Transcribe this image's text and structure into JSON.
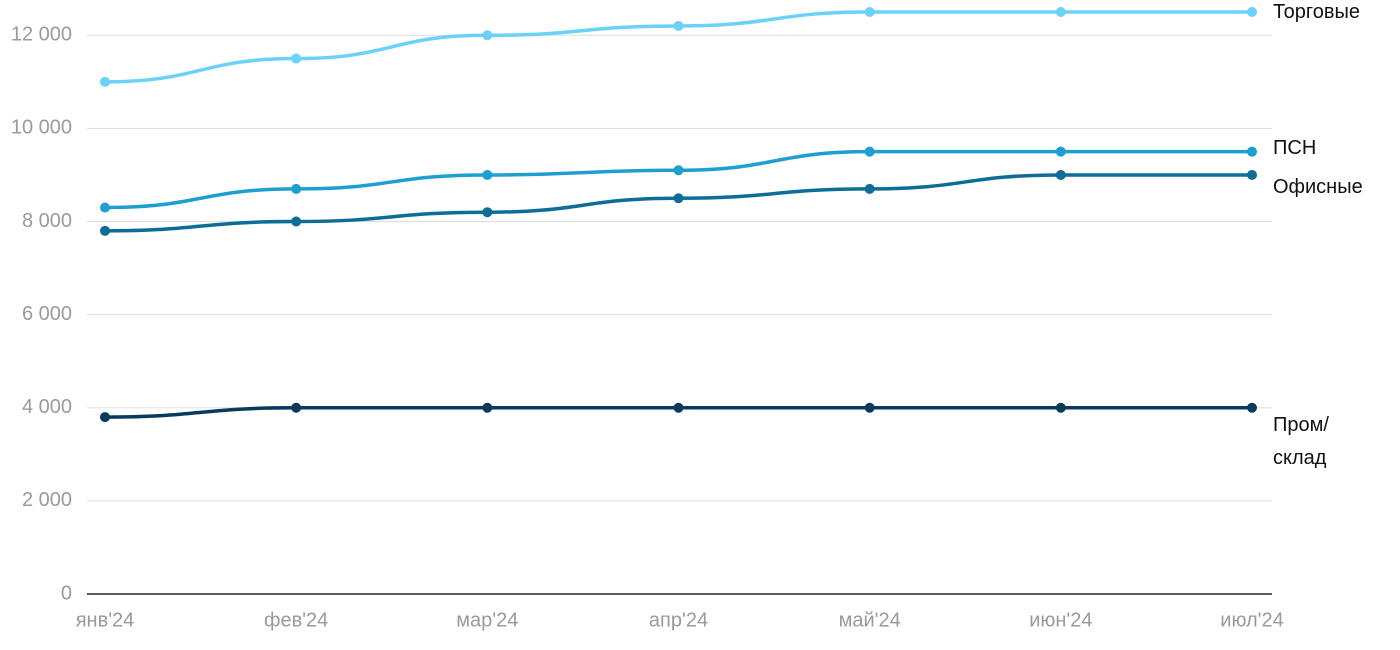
{
  "chart_data": {
    "type": "line",
    "categories": [
      "янв'24",
      "фев'24",
      "мар'24",
      "апр'24",
      "май'24",
      "июн'24",
      "июл'24"
    ],
    "series": [
      {
        "name": "Торговые",
        "color": "#6ad2f6",
        "values": [
          11000,
          11500,
          12000,
          12200,
          12500,
          12500,
          12500
        ]
      },
      {
        "name": "ПСН",
        "color": "#1f9fcf",
        "values": [
          8300,
          8700,
          9000,
          9100,
          9500,
          9500,
          9500
        ]
      },
      {
        "name": "Офисные",
        "color": "#0e6d96",
        "values": [
          7800,
          8000,
          8200,
          8500,
          8700,
          9000,
          9000
        ]
      },
      {
        "name": "Пром/\nсклад",
        "color": "#083a5c",
        "values": [
          3800,
          4000,
          4000,
          4000,
          4000,
          4000,
          4000
        ]
      }
    ],
    "ylim": [
      0,
      12500
    ],
    "yticks": [
      0,
      {
        "value": 2000,
        "label": "2 000"
      },
      {
        "value": 4000,
        "label": "4 000"
      },
      {
        "value": 6000,
        "label": "6 000"
      },
      {
        "value": 8000,
        "label": "8 000"
      },
      {
        "value": 10000,
        "label": "10 000"
      },
      {
        "value": 12000,
        "label": "12 000"
      }
    ],
    "grid": true
  }
}
